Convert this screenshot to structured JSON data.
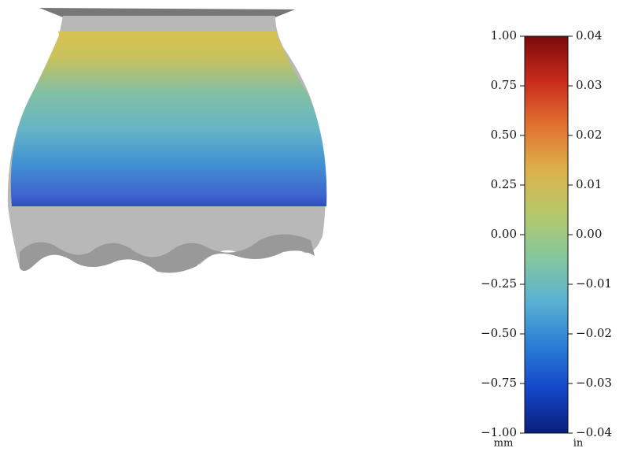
{
  "chart_data": {
    "type": "colorbar",
    "ylabel": "mm",
    "y2label": "in",
    "ylim": [
      -1,
      1
    ],
    "yticks": [
      {
        "value": -1,
        "label": "−1.00"
      },
      {
        "value": -0.75,
        "label": "−0.75"
      },
      {
        "value": -0.5,
        "label": "−0.50"
      },
      {
        "value": -0.25,
        "label": "−0.25"
      },
      {
        "value": 0,
        "label": "0.00"
      },
      0.25,
      {
        "value": 0.5,
        "label": "0.50"
      },
      0.75,
      {
        "value": 1,
        "label": "1.00"
      }
    ],
    "y2lim": [
      -0.04,
      0.04
    ],
    "y2ticks": [
      {
        "value": -0.04,
        "label": "−0.04"
      },
      {
        "value": -0.03,
        "label": "−0.03"
      },
      {
        "value": -0.02,
        "label": "−0.02"
      },
      {
        "value": -0.01,
        "label": "−0.01"
      },
      {
        "value": 0,
        "label": "0.00"
      },
      0.01,
      0.02,
      0.03,
      0.04
    ],
    "colormap": [
      "#0a1f7a",
      "#1446c8",
      "#2a7fd6",
      "#5ab2d2",
      "#86c79c",
      "#b7c86a",
      "#ddb04a",
      "#e0702f",
      "#c82a1c",
      "#7a0a0a"
    ]
  }
}
